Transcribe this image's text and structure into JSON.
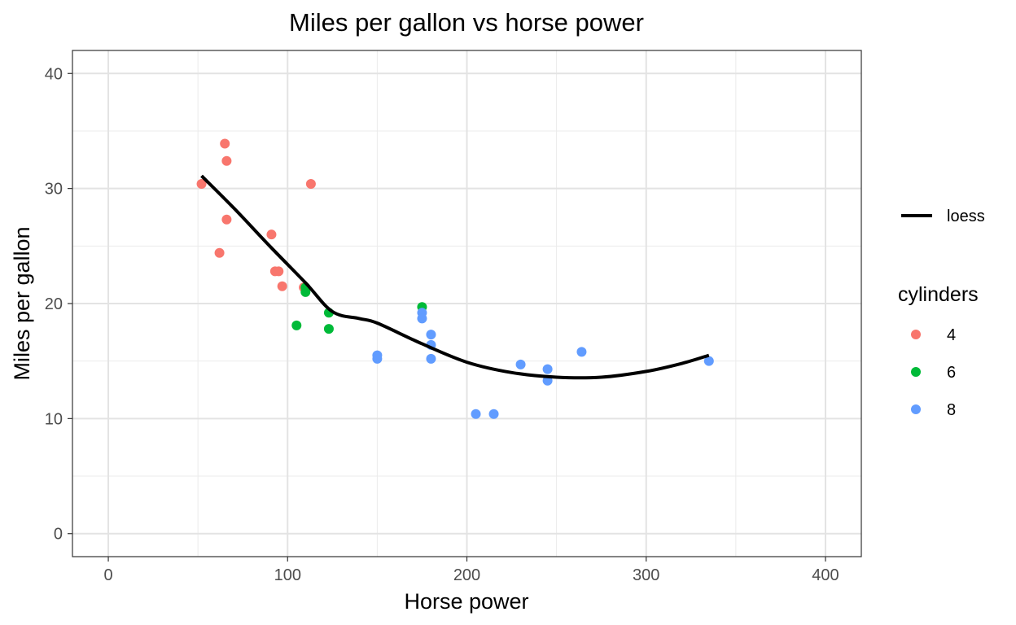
{
  "chart_data": {
    "type": "scatter",
    "title": "Miles per gallon vs horse power",
    "xlabel": "Horse power",
    "ylabel": "Miles per gallon",
    "xlim": [
      -20,
      420
    ],
    "ylim": [
      -2,
      42
    ],
    "x_ticks": [
      0,
      100,
      200,
      300,
      400
    ],
    "y_ticks": [
      0,
      10,
      20,
      30,
      40
    ],
    "grid": true,
    "legend_position": "right",
    "legend": {
      "line_label": "loess",
      "title": "cylinders",
      "entries": [
        {
          "label": "4",
          "color": "#F8766D"
        },
        {
          "label": "6",
          "color": "#00BA38"
        },
        {
          "label": "8",
          "color": "#619CFF"
        }
      ]
    },
    "series": [
      {
        "name": "4",
        "color": "#F8766D",
        "points": [
          [
            52,
            30.4
          ],
          [
            65,
            33.9
          ],
          [
            66,
            32.4
          ],
          [
            113,
            30.4
          ],
          [
            66,
            27.3
          ],
          [
            91,
            26.0
          ],
          [
            62,
            24.4
          ],
          [
            93,
            22.8
          ],
          [
            95,
            22.8
          ],
          [
            97,
            21.5
          ],
          [
            109,
            21.4
          ]
        ]
      },
      {
        "name": "6",
        "color": "#00BA38",
        "points": [
          [
            175,
            19.7
          ],
          [
            123,
            19.2
          ],
          [
            110,
            21.0
          ],
          [
            110,
            21.4
          ],
          [
            105,
            18.1
          ],
          [
            123,
            17.8
          ]
        ]
      },
      {
        "name": "8",
        "color": "#619CFF",
        "points": [
          [
            175,
            19.2
          ],
          [
            175,
            18.7
          ],
          [
            180,
            17.3
          ],
          [
            180,
            16.4
          ],
          [
            264,
            15.8
          ],
          [
            150,
            15.5
          ],
          [
            180,
            15.2
          ],
          [
            150,
            15.2
          ],
          [
            335,
            15.0
          ],
          [
            230,
            14.7
          ],
          [
            245,
            14.3
          ],
          [
            245,
            13.3
          ],
          [
            205,
            10.4
          ],
          [
            215,
            10.4
          ]
        ]
      }
    ],
    "smooth": {
      "name": "loess",
      "color": "#000000",
      "points": [
        [
          52,
          31.1
        ],
        [
          70,
          28.3
        ],
        [
          90,
          25.0
        ],
        [
          110,
          21.8
        ],
        [
          125,
          19.3
        ],
        [
          140,
          18.7
        ],
        [
          150,
          18.3
        ],
        [
          175,
          16.5
        ],
        [
          200,
          14.9
        ],
        [
          225,
          14.0
        ],
        [
          250,
          13.6
        ],
        [
          275,
          13.6
        ],
        [
          300,
          14.1
        ],
        [
          320,
          14.8
        ],
        [
          335,
          15.5
        ]
      ]
    }
  }
}
